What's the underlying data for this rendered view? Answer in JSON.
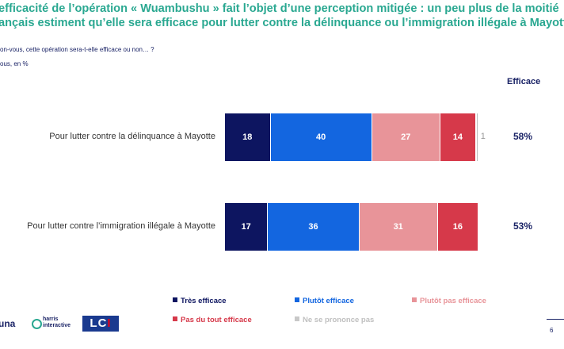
{
  "title_line1": "efficacité de l’opération « Wuambushu » fait l’objet d’une perception mitigée : un peu plus de la moitié",
  "title_line2": "ançais estiment qu’elle sera efficace pour lutter contre la délinquance ou l’immigration illégale à Mayotte",
  "question": "on-vous, cette opération sera-t-elle efficace ou non… ?",
  "base": "ous, en %",
  "efficacy_header": "Efficace",
  "colors": {
    "tres_efficace": "#0d1560",
    "plutot_efficace": "#1366e0",
    "plutot_pas_efficace": "#e89499",
    "pas_du_tout_efficace": "#d6394a",
    "nsp": "#c8c8c8",
    "title": "#2aa891"
  },
  "chart_data": {
    "type": "bar",
    "orientation": "horizontal",
    "stacked": true,
    "categories": [
      "Pour lutter contre la délinquance à Mayotte",
      "Pour lutter contre l’immigration illégale à Mayotte"
    ],
    "series": [
      {
        "name": "Très efficace",
        "values": [
          18,
          17
        ]
      },
      {
        "name": "Plutôt efficace",
        "values": [
          40,
          36
        ]
      },
      {
        "name": "Plutôt pas efficace",
        "values": [
          27,
          31
        ]
      },
      {
        "name": "Pas du tout efficace",
        "values": [
          14,
          16
        ]
      },
      {
        "name": "Ne se prononce pas",
        "values": [
          1,
          0
        ]
      }
    ],
    "efficace_totals": [
      "58%",
      "53%"
    ],
    "xlim": [
      0,
      100
    ],
    "legend_position": "bottom"
  },
  "legend": [
    "Très efficace",
    "Plutôt efficace",
    "Plutôt pas efficace",
    "Pas du tout efficace",
    "Ne se prononce pas"
  ],
  "logos": {
    "una": "una",
    "harris_line1": "harris",
    "harris_line2": "interactive",
    "lci_main": "LC",
    "lci_i": "I"
  },
  "page_number": "6"
}
